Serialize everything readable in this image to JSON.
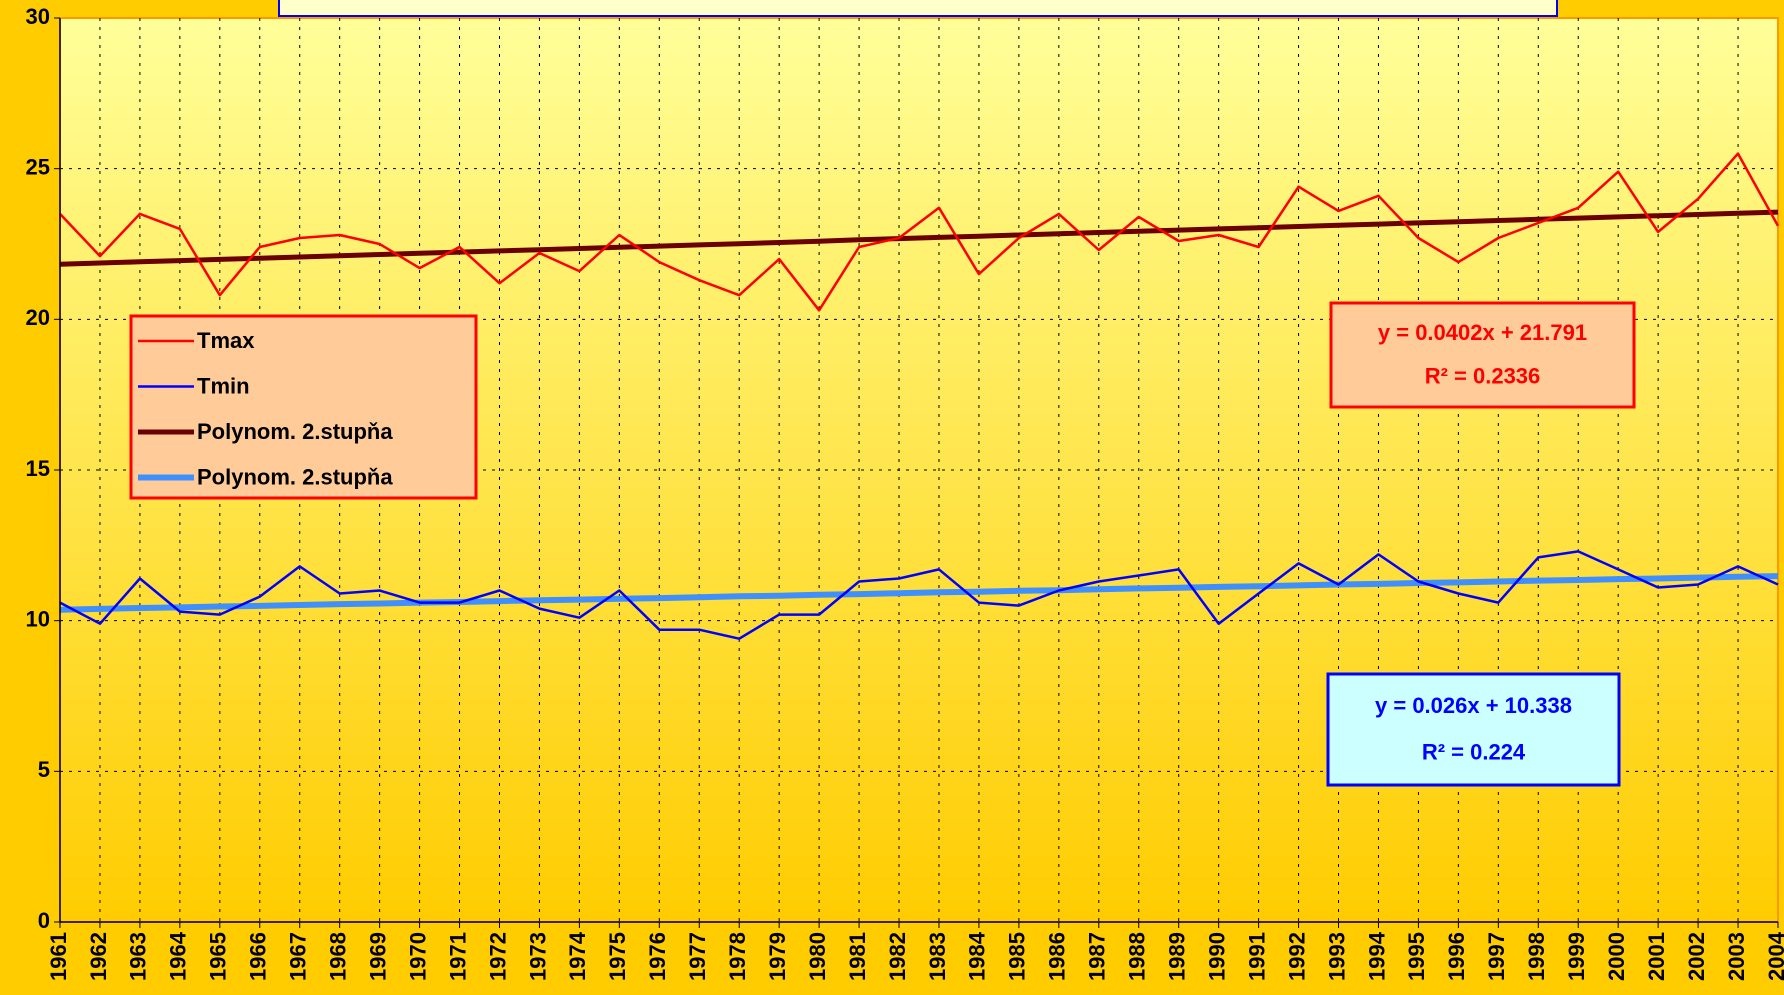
{
  "chart_data": {
    "type": "line",
    "categories": [
      "1961",
      "1962",
      "1963",
      "1964",
      "1965",
      "1966",
      "1967",
      "1968",
      "1969",
      "1970",
      "1971",
      "1972",
      "1973",
      "1974",
      "1975",
      "1976",
      "1977",
      "1978",
      "1979",
      "1980",
      "1981",
      "1982",
      "1983",
      "1984",
      "1985",
      "1986",
      "1987",
      "1988",
      "1989",
      "1990",
      "1991",
      "1992",
      "1993",
      "1994",
      "1995",
      "1996",
      "1997",
      "1998",
      "1999",
      "2000",
      "2001",
      "2002",
      "2003",
      "2004"
    ],
    "series": [
      {
        "name": "Tmax",
        "color": "#ff0000",
        "values": [
          23.5,
          22.1,
          23.5,
          23.0,
          20.8,
          22.4,
          22.7,
          22.8,
          22.5,
          21.7,
          22.4,
          21.2,
          22.2,
          21.6,
          22.8,
          21.9,
          21.3,
          20.8,
          22.0,
          20.3,
          22.4,
          22.7,
          23.7,
          21.5,
          22.7,
          23.5,
          22.3,
          23.4,
          22.6,
          22.8,
          22.4,
          24.4,
          23.6,
          24.1,
          22.7,
          21.9,
          22.7,
          23.2,
          23.7,
          24.9,
          22.9,
          24.0,
          25.5,
          23.1
        ]
      },
      {
        "name": "Tmin",
        "color": "#0000ff",
        "values": [
          10.6,
          9.9,
          11.4,
          10.3,
          10.2,
          10.8,
          11.8,
          10.9,
          11.0,
          10.6,
          10.6,
          11.0,
          10.4,
          10.1,
          11.0,
          9.7,
          9.7,
          9.4,
          10.2,
          10.2,
          11.3,
          11.4,
          11.7,
          10.6,
          10.5,
          11.0,
          11.3,
          11.5,
          11.7,
          9.9,
          10.9,
          11.9,
          11.2,
          12.2,
          11.3,
          10.9,
          10.6,
          12.1,
          12.3,
          11.7,
          11.1,
          11.2,
          11.8,
          11.2
        ]
      },
      {
        "name": "Polynom. 2.stupňa",
        "color": "#6b0000",
        "values": [
          21.83,
          21.87,
          21.91,
          21.95,
          21.99,
          22.03,
          22.07,
          22.11,
          22.15,
          22.19,
          22.23,
          22.27,
          22.31,
          22.35,
          22.39,
          22.43,
          22.47,
          22.51,
          22.55,
          22.59,
          22.64,
          22.68,
          22.72,
          22.76,
          22.8,
          22.84,
          22.88,
          22.92,
          22.96,
          23.0,
          23.04,
          23.08,
          23.12,
          23.16,
          23.2,
          23.24,
          23.28,
          23.32,
          23.36,
          23.4,
          23.44,
          23.48,
          23.52,
          23.56
        ]
      },
      {
        "name": "Polynom. 2.stupňa",
        "color": "#3f8fff",
        "values": [
          10.36,
          10.39,
          10.42,
          10.44,
          10.47,
          10.49,
          10.52,
          10.55,
          10.57,
          10.6,
          10.62,
          10.65,
          10.68,
          10.7,
          10.73,
          10.75,
          10.78,
          10.81,
          10.83,
          10.86,
          10.88,
          10.91,
          10.94,
          10.96,
          10.99,
          11.01,
          11.04,
          11.07,
          11.09,
          11.12,
          11.14,
          11.17,
          11.2,
          11.22,
          11.25,
          11.27,
          11.3,
          11.33,
          11.35,
          11.38,
          11.4,
          11.43,
          11.46,
          11.48
        ]
      }
    ],
    "annotations": [
      {
        "lines": [
          "y = 0.0402x + 21.791",
          "R² = 0.2336"
        ],
        "color": "#ff0000"
      },
      {
        "lines": [
          "y = 0.026x + 10.338",
          "R² = 0.224"
        ],
        "color": "#0000ff"
      }
    ],
    "ylim": [
      0,
      30
    ],
    "yticks": [
      0,
      5,
      10,
      15,
      20,
      25,
      30
    ],
    "grid": true,
    "legend": "left"
  }
}
